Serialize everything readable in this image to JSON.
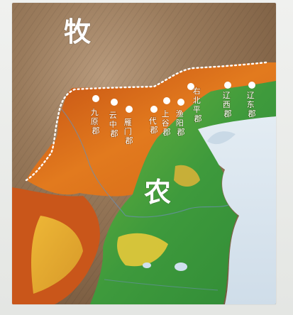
{
  "map": {
    "regions": [
      {
        "id": "north",
        "label": "牧"
      },
      {
        "id": "south",
        "label": "农"
      }
    ],
    "commanderies": [
      {
        "id": "jiuyuan",
        "label": "九原郡"
      },
      {
        "id": "yunzhong",
        "label": "云中郡"
      },
      {
        "id": "yanmen",
        "label": "雁门郡"
      },
      {
        "id": "dai",
        "label": "代郡"
      },
      {
        "id": "shanggu",
        "label": "上谷郡"
      },
      {
        "id": "yuyang",
        "label": "渔阳郡"
      },
      {
        "id": "youbeiping",
        "label": "右北平郡"
      },
      {
        "id": "liaoxi",
        "label": "辽西郡"
      },
      {
        "id": "liaodong",
        "label": "辽东郡"
      }
    ],
    "colors": {
      "pastoral_zone": "#d9691c",
      "farming_zone": "#3e9a3c",
      "highland": "#8a6a4c",
      "sea": "#d6e4ef",
      "border_line": "#ffffff"
    }
  }
}
